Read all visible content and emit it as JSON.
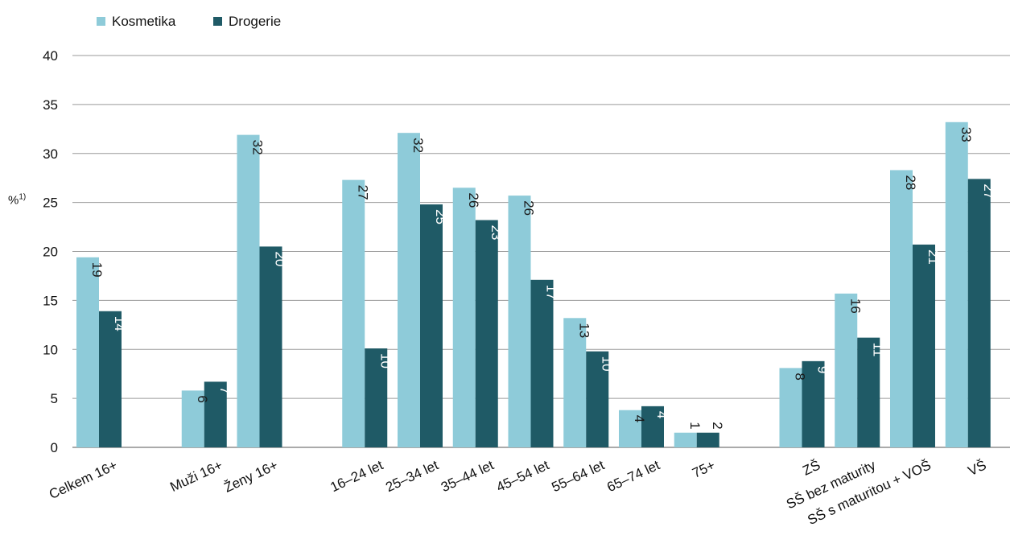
{
  "chart_data": {
    "type": "bar",
    "ylabel": "%",
    "ylabel_sup": "1)",
    "ylim": [
      0,
      40
    ],
    "yticks": [
      0,
      5,
      10,
      15,
      20,
      25,
      30,
      35,
      40
    ],
    "grid": true,
    "legend_position": "top-left",
    "groups": [
      [
        "Celkem 16+"
      ],
      [
        "Muži 16+",
        "Ženy 16+"
      ],
      [
        "16–24 let",
        "25–34 let",
        "35–44 let",
        "45–54 let",
        "55–64 let",
        "65–74 let",
        "75+"
      ],
      [
        "ZŠ",
        "SŠ bez maturity",
        "SŠ s maturitou + VOŠ",
        "VŠ"
      ]
    ],
    "categories": [
      "Celkem 16+",
      "Muži 16+",
      "Ženy 16+",
      "16–24 let",
      "25–34 let",
      "35–44 let",
      "45–54 let",
      "55–64 let",
      "65–74 let",
      "75+",
      "ZŠ",
      "SŠ bez maturity",
      "SŠ s maturitou + VOŠ",
      "VŠ"
    ],
    "series": [
      {
        "name": "Kosmetika",
        "color": "#8ecbd9",
        "values": [
          19.4,
          5.8,
          31.9,
          27.3,
          32.1,
          26.5,
          25.7,
          13.2,
          3.8,
          1.5,
          8.1,
          15.7,
          28.3,
          33.2
        ],
        "labels": [
          "19",
          "6",
          "32",
          "27",
          "32",
          "26",
          "26",
          "13",
          "4",
          "1",
          "8",
          "16",
          "28",
          "33"
        ]
      },
      {
        "name": "Drogerie",
        "color": "#1f5a66",
        "values": [
          13.9,
          6.7,
          20.5,
          10.1,
          24.8,
          23.2,
          17.1,
          9.8,
          4.2,
          1.5,
          8.8,
          11.2,
          20.7,
          27.4
        ],
        "labels": [
          "14",
          "7",
          "20",
          "10",
          "25",
          "23",
          "17",
          "10",
          "4",
          "2",
          "9",
          "11",
          "21",
          "27"
        ]
      }
    ]
  }
}
